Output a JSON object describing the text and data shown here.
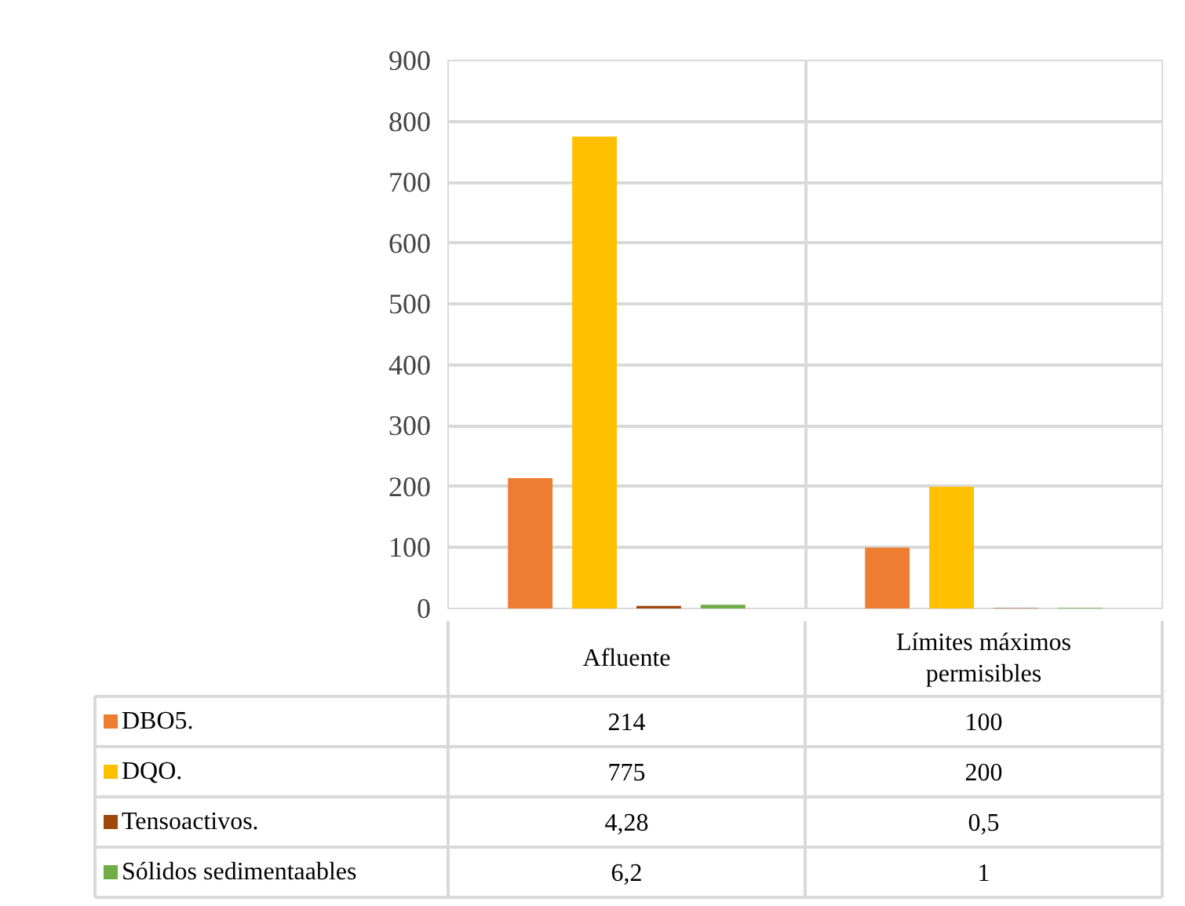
{
  "chart_data": {
    "type": "bar",
    "categories": [
      "Afluente",
      "Límites máximos permisibles"
    ],
    "series": [
      {
        "name": "DBO5.",
        "color": "#ed7d31",
        "values": [
          214,
          100
        ],
        "value_labels": [
          "214",
          "100"
        ]
      },
      {
        "name": "DQO.",
        "color": "#ffc000",
        "values": [
          775,
          200
        ],
        "value_labels": [
          "775",
          "200"
        ]
      },
      {
        "name": "Tensoactivos.",
        "color": "#9e480e",
        "values": [
          4.28,
          0.5
        ],
        "value_labels": [
          "4,28",
          "0,5"
        ]
      },
      {
        "name": "Sólidos sedimentaables",
        "color": "#70ad47",
        "values": [
          6.2,
          1
        ],
        "value_labels": [
          "6,2",
          "1"
        ]
      }
    ],
    "ylim": [
      0,
      900
    ],
    "yticks": [
      0,
      100,
      200,
      300,
      400,
      500,
      600,
      700,
      800,
      900
    ],
    "grid": true,
    "legend": "bottom"
  }
}
